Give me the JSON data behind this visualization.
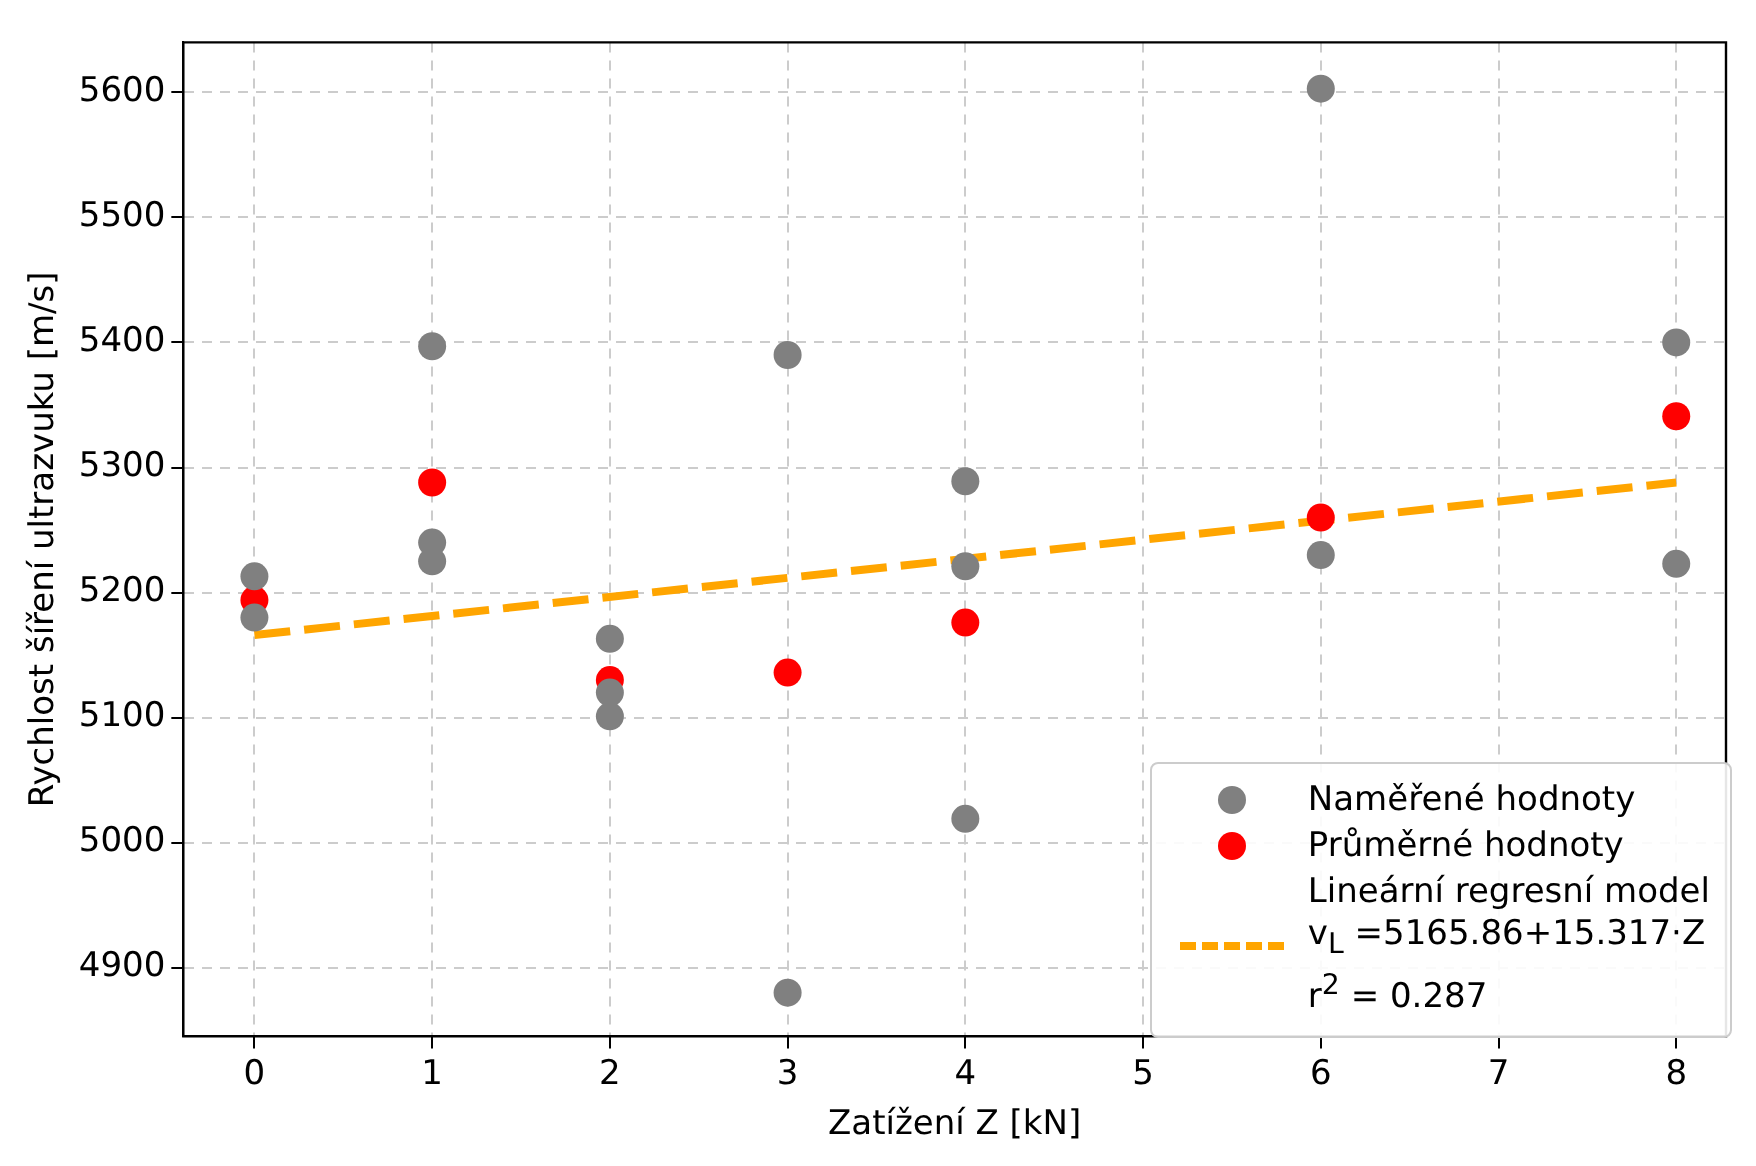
{
  "chart_data": {
    "type": "scatter",
    "xlabel": "Zatížení Z [kN]",
    "ylabel": "Rychlost šíření ultrazvuku [m/s]",
    "xlim": [
      -0.4,
      8.28
    ],
    "ylim": [
      4845,
      5640
    ],
    "xticks": [
      0,
      1,
      2,
      3,
      4,
      5,
      6,
      7,
      8
    ],
    "yticks": [
      4900,
      5000,
      5100,
      5200,
      5300,
      5400,
      5500,
      5600
    ],
    "grid": true,
    "legend": "bottom right",
    "marker": "circle",
    "series": [
      {
        "name": "Naměřené hodnoty",
        "type": "scatter",
        "color": "#808080",
        "x": [
          0,
          0,
          1,
          1,
          1,
          2,
          2,
          2,
          3,
          3,
          4,
          4,
          4,
          6,
          6,
          8,
          8
        ],
        "values": [
          5213,
          5180,
          5397,
          5240,
          5225,
          5163,
          5120,
          5101,
          5390,
          4880,
          5289,
          5221,
          5019,
          5603,
          5230,
          5400,
          5223
        ]
      },
      {
        "name": "Průměrné hodnoty",
        "type": "scatter",
        "color": "#ff0000",
        "x": [
          0,
          1,
          2,
          3,
          4,
          6,
          8
        ],
        "values": [
          5194,
          5288,
          5130,
          5136,
          5176,
          5260,
          5341
        ]
      },
      {
        "name": "Lineární regresní model\nv$_{L}$ =5165.86+15.317·Z\nr$^{2}$ = 0.287",
        "type": "line",
        "line_style": "dashed",
        "marker": "none",
        "color": "#ffa500",
        "x": [
          0,
          8
        ],
        "values": [
          5166,
          5288
        ]
      }
    ]
  }
}
